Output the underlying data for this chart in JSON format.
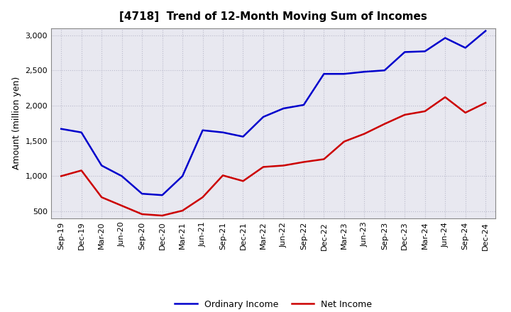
{
  "title": "[4718]  Trend of 12-Month Moving Sum of Incomes",
  "ylabel": "Amount (million yen)",
  "x_labels": [
    "Sep-19",
    "Dec-19",
    "Mar-20",
    "Jun-20",
    "Sep-20",
    "Dec-20",
    "Mar-21",
    "Jun-21",
    "Sep-21",
    "Dec-21",
    "Mar-22",
    "Jun-22",
    "Sep-22",
    "Dec-22",
    "Mar-23",
    "Jun-23",
    "Sep-23",
    "Dec-23",
    "Mar-24",
    "Jun-24",
    "Sep-24",
    "Dec-24"
  ],
  "ordinary_income": [
    1670,
    1620,
    1150,
    1000,
    750,
    730,
    1000,
    1650,
    1620,
    1560,
    1840,
    1960,
    2010,
    2450,
    2450,
    2480,
    2500,
    2760,
    2770,
    2960,
    2820,
    3060
  ],
  "net_income": [
    1000,
    1080,
    700,
    580,
    460,
    440,
    510,
    700,
    1010,
    930,
    1130,
    1150,
    1200,
    1240,
    1490,
    1600,
    1740,
    1870,
    1920,
    2120,
    1900,
    2040
  ],
  "ordinary_income_color": "#0000cc",
  "net_income_color": "#cc0000",
  "ylim_min": 400,
  "ylim_max": 3100,
  "yticks": [
    500,
    1000,
    1500,
    2000,
    2500,
    3000
  ],
  "plot_bg_color": "#e8e8f0",
  "fig_bg_color": "#ffffff",
  "grid_color": "#bbbbcc",
  "line_width": 1.8,
  "title_fontsize": 11,
  "axis_label_fontsize": 9,
  "tick_fontsize": 8,
  "legend_fontsize": 9
}
